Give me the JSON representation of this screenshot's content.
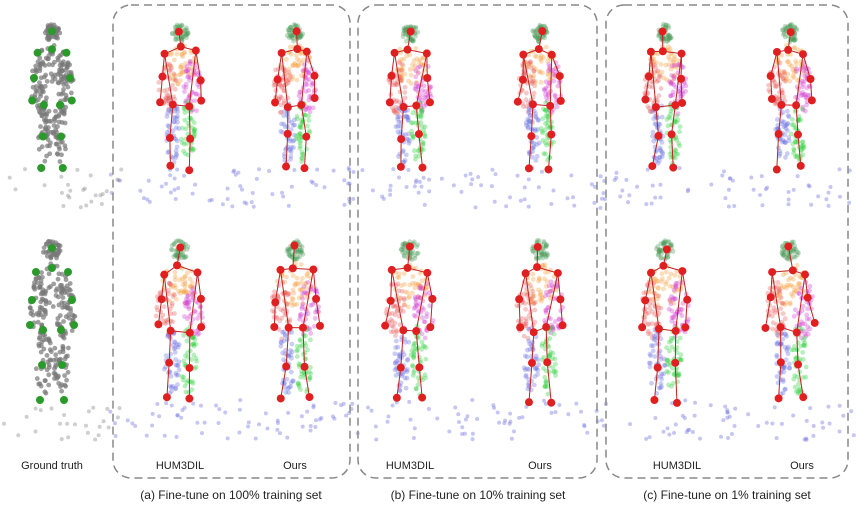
{
  "ground_truth_label": "Ground truth",
  "panels": [
    {
      "caption": "(a) Fine-tune on 100% training set",
      "columns": [
        "HUM3DIL",
        "Ours"
      ]
    },
    {
      "caption": "(b) Fine-tune on 10% training set",
      "columns": [
        "HUM3DIL",
        "Ours"
      ]
    },
    {
      "caption": "(c) Fine-tune on 1% training set",
      "columns": [
        "HUM3DIL",
        "Ours"
      ]
    }
  ]
}
